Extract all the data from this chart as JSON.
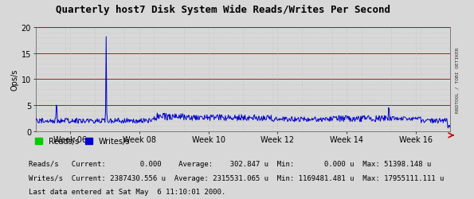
{
  "title": "Quarterly host7 Disk System Wide Reads/Writes Per Second",
  "ylabel": "Ops/s",
  "ylim": [
    0,
    20
  ],
  "yticks": [
    0,
    5,
    10,
    15,
    20
  ],
  "x_week_labels": [
    "Week 06",
    "Week 08",
    "Week 10",
    "Week 12",
    "Week 14",
    "Week 16"
  ],
  "background_color": "#d8d8d8",
  "plot_bg_color": "#d8d8d8",
  "grid_color_major": "#990000",
  "grid_color_minor": "#bbbbbb",
  "reads_color": "#00cc00",
  "writes_color": "#0000cc",
  "legend_reads": "Reads/s",
  "legend_writes": "Writes/s",
  "stats_line1": "Reads/s   Current:        0.000    Average:    302.847 u  Min:       0.000 u  Max: 51398.148 u",
  "stats_line2": "Writes/s  Current: 2387430.556 u  Average: 2315531.065 u  Min: 1169481.481 u  Max: 17955111.111 u",
  "footer": "Last data entered at Sat May  6 11:10:01 2000.",
  "right_label": "RRDTOOL / TOBI OETIKER",
  "title_fontsize": 9,
  "axis_fontsize": 7,
  "stats_fontsize": 6.5,
  "footer_fontsize": 6.5
}
